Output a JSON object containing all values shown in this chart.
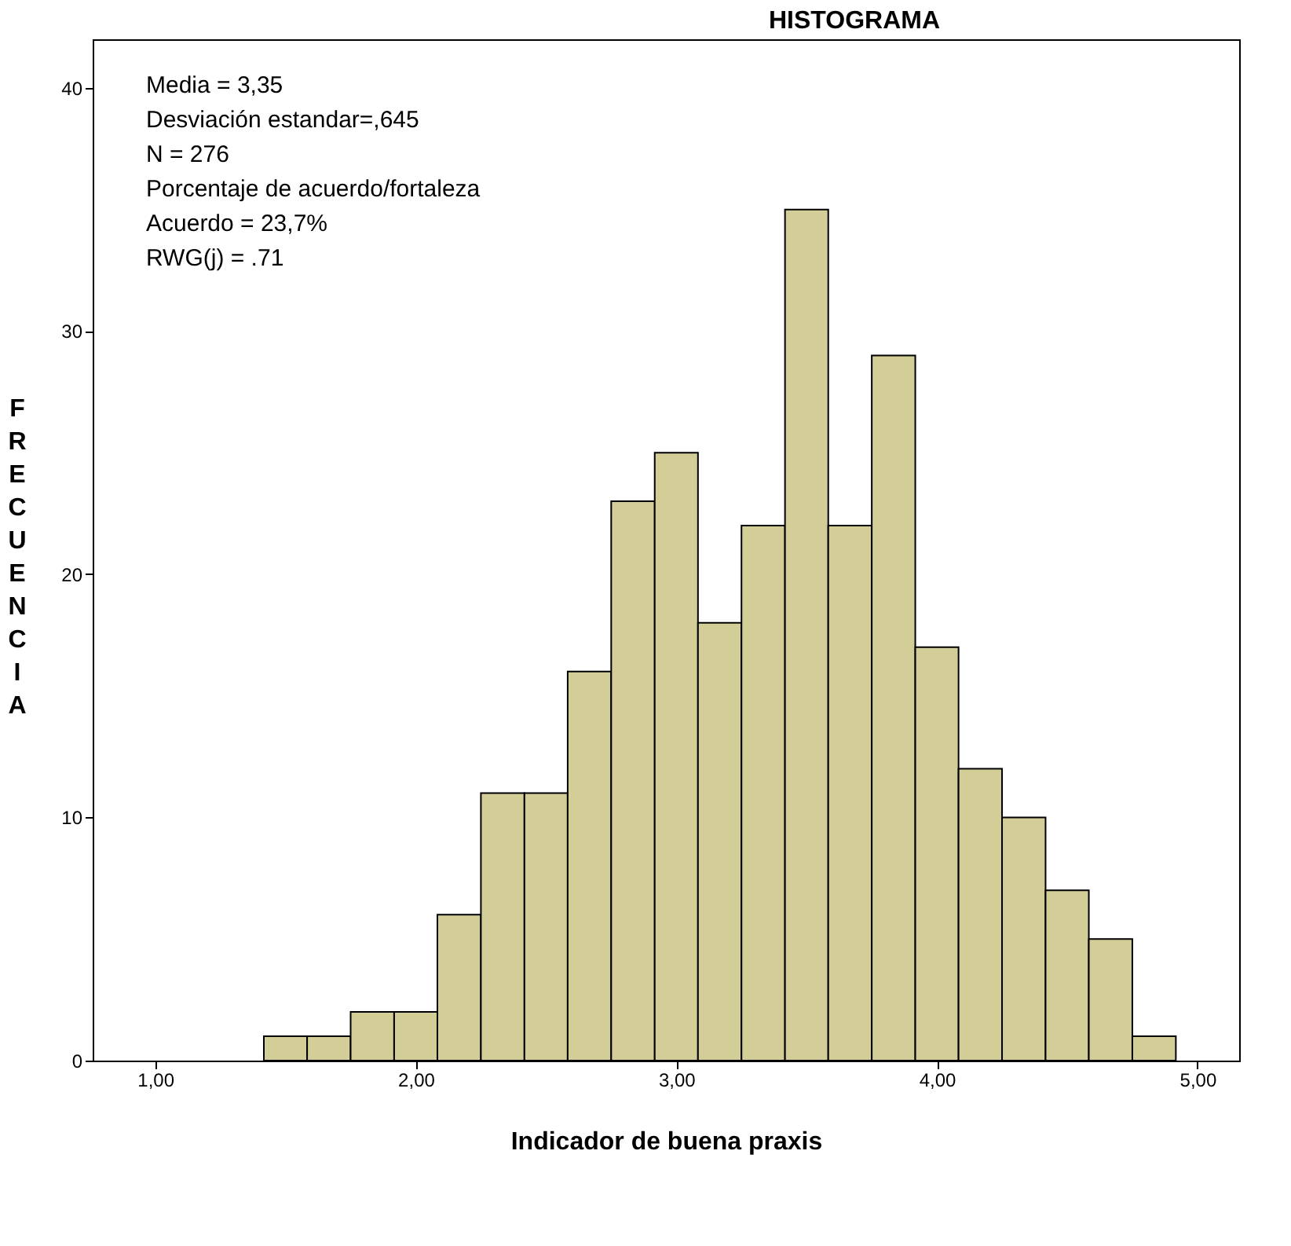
{
  "chart_data": {
    "type": "histogram",
    "title": "HISTOGRAMA",
    "xlabel": "Indicador de buena praxis",
    "ylabel": "FRECUENCIA",
    "bins": [
      1.417,
      1.583,
      1.75,
      1.917,
      2.083,
      2.25,
      2.417,
      2.583,
      2.75,
      2.917,
      3.083,
      3.25,
      3.417,
      3.583,
      3.75,
      3.917,
      4.083,
      4.25,
      4.417,
      4.583,
      4.75,
      4.917
    ],
    "values": [
      1,
      1,
      2,
      2,
      6,
      11,
      11,
      16,
      23,
      25,
      18,
      22,
      35,
      22,
      29,
      17,
      12,
      10,
      7,
      5,
      1
    ],
    "color": "#d3ce97",
    "xlim": [
      0.76,
      5.16
    ],
    "xticks": [
      {
        "value": 1,
        "label": "1,00"
      },
      {
        "value": 2,
        "label": "2,00"
      },
      {
        "value": 3,
        "label": "3,00"
      },
      {
        "value": 4,
        "label": "4,00"
      },
      {
        "value": 5,
        "label": "5,00"
      }
    ],
    "ylim": [
      0,
      42
    ],
    "yticks": [
      0,
      10,
      20,
      30,
      40
    ],
    "grid": false,
    "annotations": [
      "Media = 3,35",
      "Desviación estandar=,645",
      "N = 276",
      "Porcentaje de acuerdo/fortaleza",
      "Acuerdo = 23,7%",
      "RWG(j) = .71"
    ]
  }
}
